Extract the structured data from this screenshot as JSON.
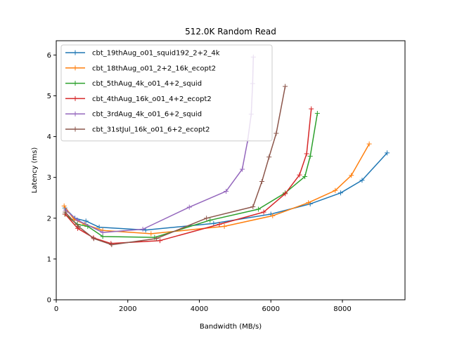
{
  "chart_data": {
    "type": "line",
    "title": "512.0K  Random Read",
    "xlabel": "Bandwidth (MB/s)",
    "ylabel": "Latency (ms)",
    "xlim": [
      0,
      9750
    ],
    "ylim": [
      0,
      6.35
    ],
    "xticks": [
      0,
      2000,
      4000,
      6000,
      8000
    ],
    "yticks": [
      0,
      1,
      2,
      3,
      4,
      5,
      6
    ],
    "grid": false,
    "legend_position": "top-left",
    "marker": "plus",
    "series": [
      {
        "name": "cbt_19thAug_o01_squid192_2+2_4k",
        "color": "#1f77b4",
        "x": [
          240,
          520,
          830,
          1200,
          2500,
          4400,
          6000,
          7100,
          7950,
          8550,
          9250
        ],
        "y": [
          2.25,
          2.0,
          1.93,
          1.78,
          1.71,
          1.87,
          2.1,
          2.35,
          2.62,
          2.93,
          3.6
        ]
      },
      {
        "name": "cbt_18thAug_o01_2+2_16k_ecopt2",
        "color": "#ff7f0e",
        "x": [
          220,
          500,
          800,
          1300,
          2650,
          4700,
          6050,
          7050,
          7800,
          8250,
          8750
        ],
        "y": [
          2.3,
          1.97,
          1.85,
          1.7,
          1.62,
          1.8,
          2.06,
          2.38,
          2.68,
          3.05,
          3.82
        ]
      },
      {
        "name": "cbt_5thAug_4k_o01_4+2_squid",
        "color": "#2ca02c",
        "x": [
          240,
          590,
          880,
          1300,
          2750,
          4300,
          5650,
          6400,
          6950,
          7100,
          7300
        ],
        "y": [
          2.1,
          1.85,
          1.8,
          1.55,
          1.53,
          1.95,
          2.22,
          2.62,
          3.02,
          3.52,
          4.57
        ]
      },
      {
        "name": "cbt_4thAug_16k_o01_4+2_ecopt2",
        "color": "#d62728",
        "x": [
          250,
          600,
          1040,
          1530,
          2900,
          4560,
          5800,
          6400,
          6800,
          7000,
          7130
        ],
        "y": [
          2.1,
          1.75,
          1.52,
          1.38,
          1.45,
          1.85,
          2.15,
          2.6,
          3.06,
          3.58,
          4.68
        ]
      },
      {
        "name": "cbt_3rdAug_4k_o01_6+2_squid",
        "color": "#9467bd",
        "x": [
          260,
          600,
          1300,
          2420,
          3720,
          4750,
          5200,
          5350,
          5450,
          5490,
          5510
        ],
        "y": [
          2.2,
          1.95,
          1.65,
          1.73,
          2.27,
          2.66,
          3.2,
          3.9,
          4.55,
          5.3,
          5.95
        ]
      },
      {
        "name": "cbt_31stJul_16k_o01_6+2_ecopt2",
        "color": "#8c564b",
        "x": [
          250,
          620,
          1050,
          1550,
          2800,
          4200,
          5500,
          5750,
          5950,
          6150,
          6400
        ],
        "y": [
          2.15,
          1.8,
          1.5,
          1.35,
          1.5,
          2.0,
          2.28,
          2.9,
          3.5,
          4.08,
          5.23
        ]
      }
    ]
  }
}
